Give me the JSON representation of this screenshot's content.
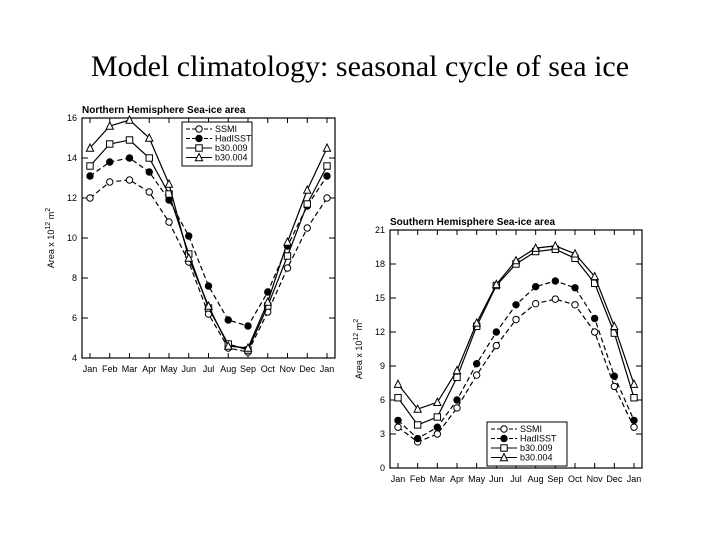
{
  "slide": {
    "title": "Model climatology: seasonal cycle of sea ice"
  },
  "chart_data": [
    {
      "type": "line",
      "title": "Northern Hemisphere Sea-ice area",
      "ylabel_parts": [
        "Area x 10",
        "12",
        " m",
        "2"
      ],
      "xlabel": "",
      "categories": [
        "Jan",
        "Feb",
        "Mar",
        "Apr",
        "May",
        "Jun",
        "Jul",
        "Aug",
        "Sep",
        "Oct",
        "Nov",
        "Dec",
        "Jan"
      ],
      "ylim": [
        4,
        16
      ],
      "yticks": [
        4,
        6,
        8,
        10,
        12,
        14,
        16
      ],
      "legend": {
        "position": "top-right"
      },
      "series": [
        {
          "name": "SSMI",
          "marker": "circle-open",
          "dash": "dashed",
          "values": [
            12.0,
            12.8,
            12.9,
            12.3,
            10.8,
            8.8,
            6.2,
            4.5,
            4.3,
            6.3,
            8.5,
            10.5,
            12.0
          ]
        },
        {
          "name": "HadISST",
          "marker": "circle-filled",
          "dash": "dashed",
          "values": [
            13.1,
            13.8,
            14.0,
            13.3,
            11.9,
            10.1,
            7.6,
            5.9,
            5.6,
            7.3,
            9.6,
            11.6,
            13.1
          ]
        },
        {
          "name": "b30.009",
          "marker": "square-open",
          "dash": "solid",
          "values": [
            13.6,
            14.7,
            14.9,
            14.0,
            12.2,
            9.2,
            6.5,
            4.7,
            4.4,
            6.6,
            9.1,
            11.7,
            13.6
          ]
        },
        {
          "name": "b30.004",
          "marker": "triangle-open",
          "dash": "solid",
          "values": [
            14.5,
            15.6,
            15.9,
            15.0,
            12.7,
            9.0,
            6.6,
            4.6,
            4.5,
            6.8,
            9.8,
            12.4,
            14.5
          ]
        }
      ]
    },
    {
      "type": "line",
      "title": "Southern Hemisphere Sea-ice area",
      "ylabel_parts": [
        "Area x 10",
        "12",
        " m",
        "2"
      ],
      "xlabel": "",
      "categories": [
        "Jan",
        "Feb",
        "Mar",
        "Apr",
        "May",
        "Jun",
        "Jul",
        "Aug",
        "Sep",
        "Oct",
        "Nov",
        "Dec",
        "Jan"
      ],
      "ylim": [
        0,
        21
      ],
      "yticks": [
        0,
        3,
        6,
        9,
        12,
        15,
        18,
        21
      ],
      "legend": {
        "position": "bottom-right"
      },
      "series": [
        {
          "name": "SSMI",
          "marker": "circle-open",
          "dash": "dashed",
          "values": [
            3.6,
            2.3,
            3.0,
            5.3,
            8.2,
            10.8,
            13.1,
            14.5,
            14.9,
            14.4,
            12.0,
            7.2,
            3.6
          ]
        },
        {
          "name": "HadISST",
          "marker": "circle-filled",
          "dash": "dashed",
          "values": [
            4.2,
            2.6,
            3.6,
            6.0,
            9.2,
            12.0,
            14.4,
            16.0,
            16.5,
            15.9,
            13.2,
            8.1,
            4.2
          ]
        },
        {
          "name": "b30.009",
          "marker": "square-open",
          "dash": "solid",
          "values": [
            6.2,
            3.8,
            4.5,
            8.0,
            12.5,
            16.1,
            18.0,
            19.1,
            19.3,
            18.5,
            16.3,
            11.9,
            6.2
          ]
        },
        {
          "name": "b30.004",
          "marker": "triangle-open",
          "dash": "solid",
          "values": [
            7.4,
            5.2,
            5.8,
            8.6,
            12.8,
            16.2,
            18.3,
            19.4,
            19.6,
            18.9,
            16.9,
            12.5,
            7.4
          ]
        }
      ]
    }
  ]
}
